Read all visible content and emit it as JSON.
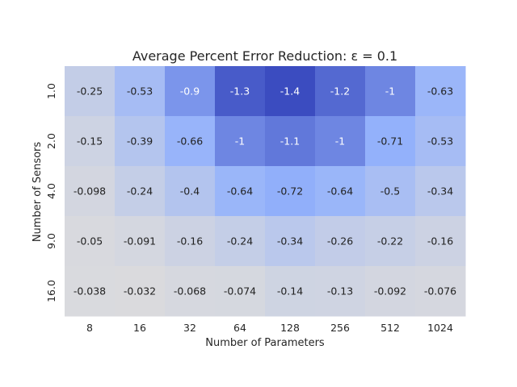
{
  "chart_data": {
    "type": "heatmap",
    "title": "Average Percent Error Reduction: ε = 0.1",
    "xlabel": "Number of Parameters",
    "ylabel": "Number of Sensors",
    "x_categories": [
      "8",
      "16",
      "32",
      "64",
      "128",
      "256",
      "512",
      "1024"
    ],
    "y_categories": [
      "1.0",
      "2.0",
      "4.0",
      "9.0",
      "16.0"
    ],
    "values": [
      [
        -0.25,
        -0.53,
        -0.9,
        -1.3,
        -1.4,
        -1.2,
        -1,
        -0.63
      ],
      [
        -0.15,
        -0.39,
        -0.66,
        -1,
        -1.1,
        -1,
        -0.71,
        -0.53
      ],
      [
        -0.098,
        -0.24,
        -0.4,
        -0.64,
        -0.72,
        -0.64,
        -0.5,
        -0.34
      ],
      [
        -0.05,
        -0.091,
        -0.16,
        -0.24,
        -0.34,
        -0.26,
        -0.22,
        -0.16
      ],
      [
        -0.038,
        -0.032,
        -0.068,
        -0.074,
        -0.14,
        -0.13,
        -0.092,
        -0.076
      ]
    ],
    "labels": [
      [
        "-0.25",
        "-0.53",
        "-0.9",
        "-1.3",
        "-1.4",
        "-1.2",
        "-1",
        "-0.63"
      ],
      [
        "-0.15",
        "-0.39",
        "-0.66",
        "-1",
        "-1.1",
        "-1",
        "-0.71",
        "-0.53"
      ],
      [
        "-0.098",
        "-0.24",
        "-0.4",
        "-0.64",
        "-0.72",
        "-0.64",
        "-0.5",
        "-0.34"
      ],
      [
        "-0.05",
        "-0.091",
        "-0.16",
        "-0.24",
        "-0.34",
        "-0.26",
        "-0.22",
        "-0.16"
      ],
      [
        "-0.038",
        "-0.032",
        "-0.068",
        "-0.074",
        "-0.14",
        "-0.13",
        "-0.092",
        "-0.076"
      ]
    ],
    "colormap": {
      "low_value": -1.4,
      "low_color": "#3b4cc0",
      "high_value": 0,
      "high_color": "#dddcdc"
    },
    "annotation_light_color": "#ffffff",
    "annotation_dark_color": "#222222"
  }
}
